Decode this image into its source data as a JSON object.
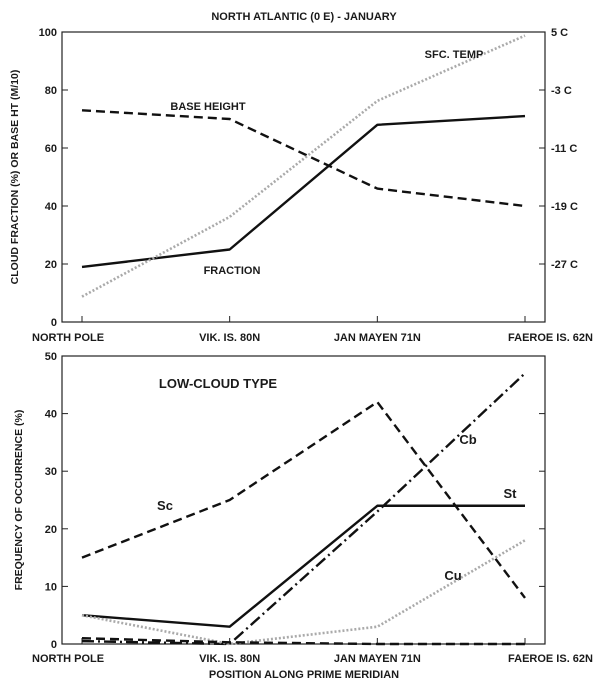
{
  "chart_data": [
    {
      "type": "line",
      "title": "NORTH ATLANTIC (0 E) - JANUARY",
      "categories": [
        "NORTH POLE",
        "VIK. IS. 80N",
        "JAN MAYEN 71N",
        "FAEROE IS. 62N"
      ],
      "ylabel": "CLOUD FRACTION (%) OR BASE HT (M/10)",
      "ylim": [
        0,
        100
      ],
      "yticks": [
        0,
        20,
        40,
        60,
        80,
        100
      ],
      "y2lim": [
        -35,
        5
      ],
      "y2ticks": [
        "5 C",
        "-3 C",
        "-11 C",
        "-19 C",
        "-27 C"
      ],
      "grid": false,
      "series": [
        {
          "name": "FRACTION",
          "values": [
            19,
            25,
            68,
            71
          ],
          "style": "solid",
          "color": "#111111",
          "axis": "left"
        },
        {
          "name": "BASE HEIGHT",
          "values": [
            73,
            70,
            46,
            40
          ],
          "style": "dashed",
          "color": "#111111",
          "axis": "left"
        },
        {
          "name": "SFC. TEMP",
          "values": [
            -31.5,
            -20.5,
            -4.5,
            4.5
          ],
          "style": "dotted",
          "color": "#aaaaaa",
          "axis": "right"
        }
      ]
    },
    {
      "type": "line",
      "title": "LOW-CLOUD TYPE",
      "categories": [
        "NORTH POLE",
        "VIK. IS. 80N",
        "JAN MAYEN 71N",
        "FAEROE IS. 62N"
      ],
      "xlabel": "POSITION ALONG PRIME MERIDIAN",
      "ylabel": "FREQUENCY OF OCCURRENCE (%)",
      "ylim": [
        0,
        50
      ],
      "yticks": [
        0,
        10,
        20,
        30,
        40,
        50
      ],
      "grid": false,
      "series": [
        {
          "name": "Sc",
          "values": [
            15,
            25,
            42,
            8
          ],
          "style": "dashed",
          "color": "#111111"
        },
        {
          "name": "St",
          "values": [
            5,
            3,
            24,
            24
          ],
          "style": "solid",
          "color": "#111111"
        },
        {
          "name": "Cb",
          "values": [
            0.5,
            0,
            23,
            47
          ],
          "style": "dashdot",
          "color": "#111111"
        },
        {
          "name": "Cu",
          "values": [
            5,
            0,
            3,
            18
          ],
          "style": "dotted",
          "color": "#aaaaaa"
        },
        {
          "name": "",
          "values": [
            1,
            0.3,
            0,
            0
          ],
          "style": "dashed",
          "color": "#111111"
        }
      ]
    }
  ]
}
